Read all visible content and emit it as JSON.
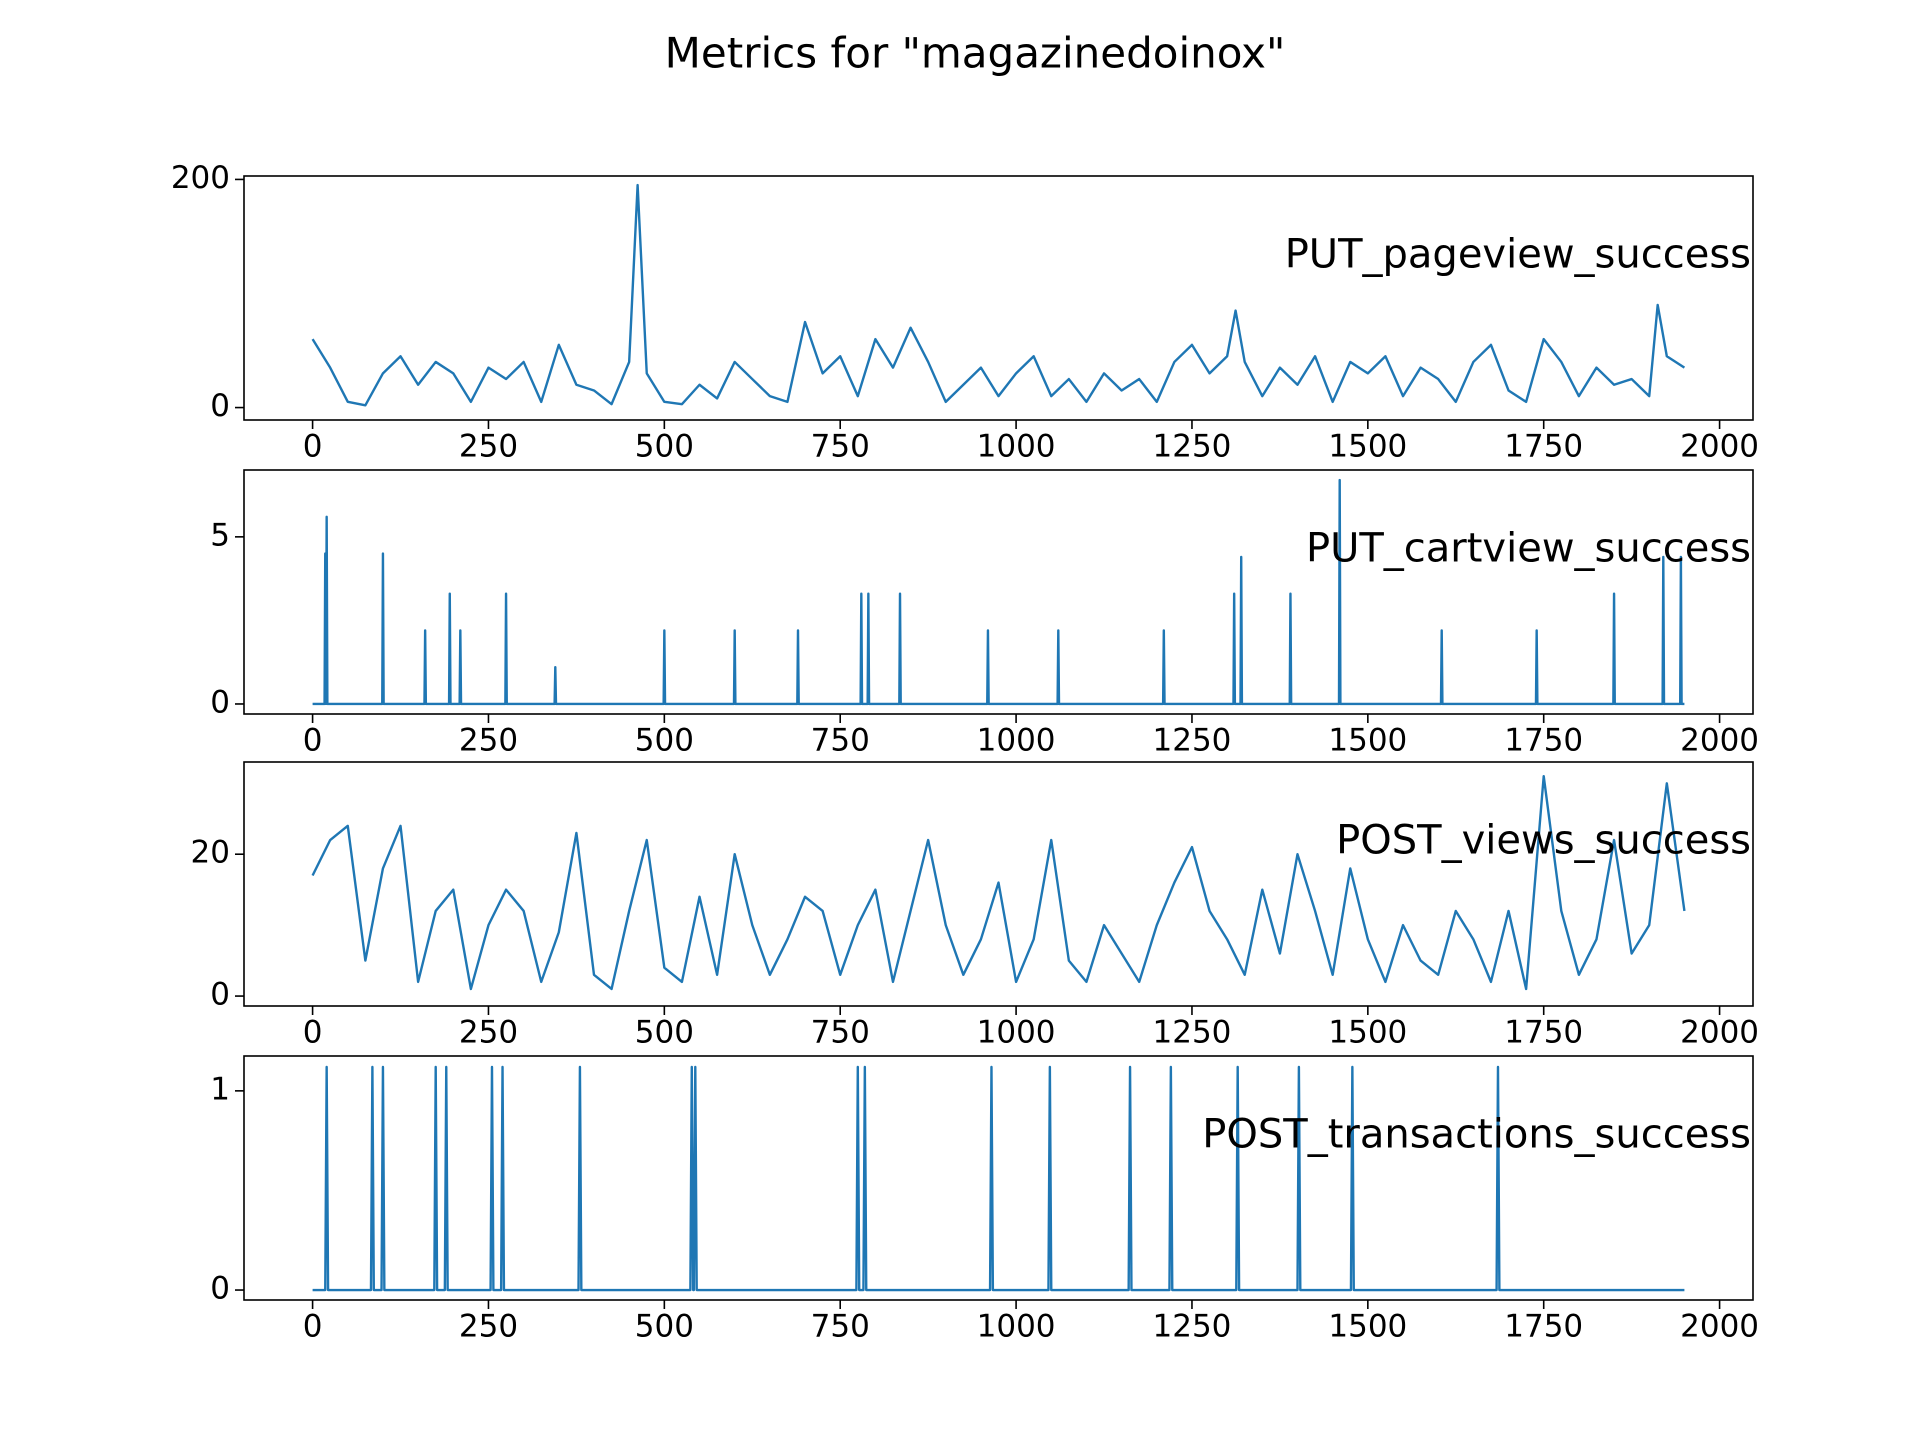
{
  "title": "Metrics for \"magazinedoinox\"",
  "chart_data": [
    {
      "type": "line",
      "label": "PUT_pageview_success",
      "color": "#1f77b4",
      "x": [
        0,
        25,
        50,
        75,
        100,
        125,
        150,
        175,
        200,
        225,
        250,
        275,
        300,
        325,
        350,
        375,
        400,
        425,
        450,
        462,
        475,
        500,
        525,
        550,
        575,
        600,
        625,
        650,
        675,
        700,
        725,
        750,
        775,
        800,
        825,
        850,
        875,
        900,
        925,
        950,
        975,
        1000,
        1025,
        1050,
        1075,
        1100,
        1125,
        1150,
        1175,
        1200,
        1225,
        1250,
        1275,
        1300,
        1312,
        1325,
        1350,
        1375,
        1400,
        1425,
        1450,
        1475,
        1500,
        1525,
        1550,
        1575,
        1600,
        1625,
        1650,
        1675,
        1700,
        1725,
        1750,
        1775,
        1800,
        1825,
        1850,
        1875,
        1900,
        1912,
        1925,
        1950
      ],
      "values": [
        60,
        35,
        5,
        2,
        30,
        45,
        20,
        40,
        30,
        5,
        35,
        25,
        40,
        5,
        55,
        20,
        15,
        3,
        40,
        195,
        30,
        5,
        3,
        20,
        8,
        40,
        25,
        10,
        5,
        75,
        30,
        45,
        10,
        60,
        35,
        70,
        40,
        5,
        20,
        35,
        10,
        30,
        45,
        10,
        25,
        5,
        30,
        15,
        25,
        5,
        40,
        55,
        30,
        45,
        85,
        40,
        10,
        35,
        20,
        45,
        5,
        40,
        30,
        45,
        10,
        35,
        25,
        5,
        40,
        55,
        15,
        5,
        60,
        40,
        10,
        35,
        20,
        25,
        10,
        90,
        45,
        35
      ],
      "xlim": [
        -97.5,
        2047.5
      ],
      "ylim": [
        -10.9,
        203
      ],
      "xticks": [
        0,
        250,
        500,
        750,
        1000,
        1250,
        1500,
        1750,
        2000
      ],
      "yticks": [
        0,
        200
      ]
    },
    {
      "type": "line",
      "label": "PUT_cartview_success",
      "color": "#1f77b4",
      "x": [
        0,
        17,
        18,
        19,
        19,
        20,
        21,
        99,
        100,
        101,
        159,
        160,
        161,
        194,
        195,
        196,
        209,
        210,
        211,
        274,
        275,
        276,
        344,
        345,
        346,
        499,
        500,
        501,
        599,
        600,
        601,
        689,
        690,
        691,
        779,
        780,
        781,
        789,
        790,
        791,
        834,
        835,
        836,
        959,
        960,
        961,
        1059,
        1060,
        1061,
        1209,
        1210,
        1211,
        1309,
        1310,
        1311,
        1319,
        1320,
        1321,
        1389,
        1390,
        1391,
        1459,
        1460,
        1461,
        1604,
        1605,
        1606,
        1739,
        1740,
        1741,
        1849,
        1850,
        1851,
        1919,
        1920,
        1921,
        1944,
        1945,
        1946,
        1950
      ],
      "values": [
        0,
        0,
        4.5,
        0,
        0,
        5.6,
        0,
        0,
        4.5,
        0,
        0,
        2.2,
        0,
        0,
        3.3,
        0,
        0,
        2.2,
        0,
        0,
        3.3,
        0,
        0,
        1.1,
        0,
        0,
        2.2,
        0,
        0,
        2.2,
        0,
        0,
        2.2,
        0,
        0,
        3.3,
        0,
        0,
        3.3,
        0,
        0,
        3.3,
        0,
        0,
        2.2,
        0,
        0,
        2.2,
        0,
        0,
        2.2,
        0,
        0,
        3.3,
        0,
        0,
        4.4,
        0,
        0,
        3.3,
        0,
        0,
        6.7,
        0,
        0,
        2.2,
        0,
        0,
        2.2,
        0,
        0,
        3.3,
        0,
        0,
        4.4,
        0,
        0,
        4.4,
        0,
        0
      ],
      "xlim": [
        -97.5,
        2047.5
      ],
      "ylim": [
        -0.3,
        7.0
      ],
      "xticks": [
        0,
        250,
        500,
        750,
        1000,
        1250,
        1500,
        1750,
        2000
      ],
      "yticks": [
        0,
        5
      ]
    },
    {
      "type": "line",
      "label": "POST_views_success",
      "color": "#1f77b4",
      "x": [
        0,
        25,
        50,
        75,
        100,
        125,
        150,
        175,
        200,
        225,
        250,
        275,
        300,
        325,
        350,
        375,
        400,
        425,
        450,
        475,
        500,
        525,
        550,
        575,
        600,
        625,
        650,
        675,
        700,
        725,
        750,
        775,
        800,
        825,
        850,
        875,
        900,
        925,
        950,
        975,
        1000,
        1025,
        1050,
        1075,
        1100,
        1125,
        1150,
        1175,
        1200,
        1225,
        1250,
        1275,
        1300,
        1325,
        1350,
        1375,
        1400,
        1425,
        1450,
        1475,
        1500,
        1525,
        1550,
        1575,
        1600,
        1625,
        1650,
        1675,
        1700,
        1725,
        1750,
        1775,
        1800,
        1825,
        1850,
        1875,
        1900,
        1925,
        1950
      ],
      "values": [
        17,
        22,
        24,
        5,
        18,
        24,
        2,
        12,
        15,
        1,
        10,
        15,
        12,
        2,
        9,
        23,
        3,
        1,
        12,
        22,
        4,
        2,
        14,
        3,
        20,
        10,
        3,
        8,
        14,
        12,
        3,
        10,
        15,
        2,
        12,
        22,
        10,
        3,
        8,
        16,
        2,
        8,
        22,
        5,
        2,
        10,
        6,
        2,
        10,
        16,
        21,
        12,
        8,
        3,
        15,
        6,
        20,
        12,
        3,
        18,
        8,
        2,
        10,
        5,
        3,
        12,
        8,
        2,
        12,
        1,
        31,
        12,
        3,
        8,
        22,
        6,
        10,
        30,
        12
      ],
      "xlim": [
        -97.5,
        2047.5
      ],
      "ylim": [
        -1.4,
        33
      ],
      "xticks": [
        0,
        250,
        500,
        750,
        1000,
        1250,
        1500,
        1750,
        2000
      ],
      "yticks": [
        0,
        20
      ]
    },
    {
      "type": "line",
      "label": "POST_transactions_success",
      "color": "#1f77b4",
      "x": [
        0,
        18,
        20,
        22,
        83,
        85,
        87,
        98,
        100,
        102,
        173,
        175,
        177,
        188,
        190,
        192,
        253,
        255,
        257,
        268,
        270,
        272,
        378,
        380,
        382,
        537,
        539,
        541,
        542,
        544,
        546,
        773,
        775,
        777,
        783,
        785,
        787,
        963,
        965,
        967,
        1046,
        1048,
        1050,
        1160,
        1162,
        1164,
        1218,
        1220,
        1222,
        1313,
        1315,
        1317,
        1400,
        1402,
        1404,
        1476,
        1478,
        1480,
        1683,
        1685,
        1687,
        1950
      ],
      "values": [
        0,
        0,
        1.12,
        0,
        0,
        1.12,
        0,
        0,
        1.12,
        0,
        0,
        1.12,
        0,
        0,
        1.12,
        0,
        0,
        1.12,
        0,
        0,
        1.12,
        0,
        0,
        1.12,
        0,
        0,
        1.12,
        0,
        0,
        1.12,
        0,
        0,
        1.12,
        0,
        0,
        1.12,
        0,
        0,
        1.12,
        0,
        0,
        1.12,
        0,
        0,
        1.12,
        0,
        0,
        1.12,
        0,
        0,
        1.12,
        0,
        0,
        1.12,
        0,
        0,
        1.12,
        0,
        0,
        1.12,
        0,
        0
      ],
      "xlim": [
        -97.5,
        2047.5
      ],
      "ylim": [
        -0.05,
        1.175
      ],
      "xticks": [
        0,
        250,
        500,
        750,
        1000,
        1250,
        1500,
        1750,
        2000
      ],
      "yticks": [
        0,
        1
      ]
    }
  ]
}
